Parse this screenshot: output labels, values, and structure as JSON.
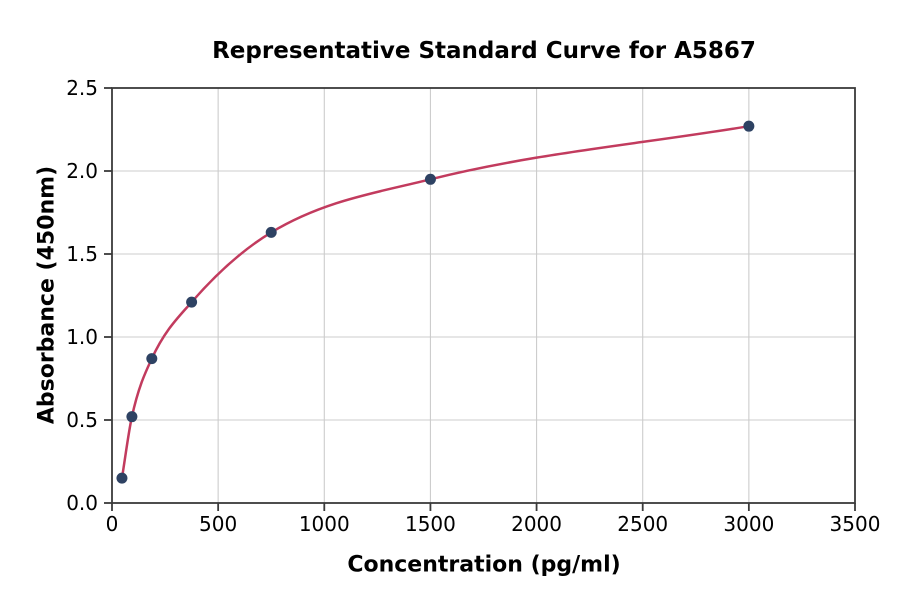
{
  "chart_data": {
    "type": "scatter",
    "title": "Representative Standard Curve for A5867",
    "xlabel": "Concentration (pg/ml)",
    "ylabel": "Absorbance (450nm)",
    "xlim": [
      0,
      3500
    ],
    "ylim": [
      0,
      2.5
    ],
    "xticks": [
      0,
      500,
      1000,
      1500,
      2000,
      2500,
      3000,
      3500
    ],
    "xtick_labels": [
      "0",
      "500",
      "1000",
      "1500",
      "2000",
      "2500",
      "3000",
      "3500"
    ],
    "yticks": [
      0,
      0.5,
      1.0,
      1.5,
      2.0,
      2.5
    ],
    "ytick_labels": [
      "0.0",
      "0.5",
      "1.0",
      "1.5",
      "2.0",
      "2.5"
    ],
    "grid": true,
    "legend": "none",
    "points": {
      "x": [
        46.88,
        93.75,
        187.5,
        375,
        750,
        1500,
        3000
      ],
      "y": [
        0.15,
        0.52,
        0.87,
        1.21,
        1.63,
        1.95,
        2.27
      ]
    },
    "fit_curve": true,
    "colors": {
      "curve": "#c23b5e",
      "marker": "#2e4263",
      "grid": "#cccccc",
      "spine": "#3a3a3a",
      "text": "#000000",
      "background": "#ffffff"
    }
  }
}
